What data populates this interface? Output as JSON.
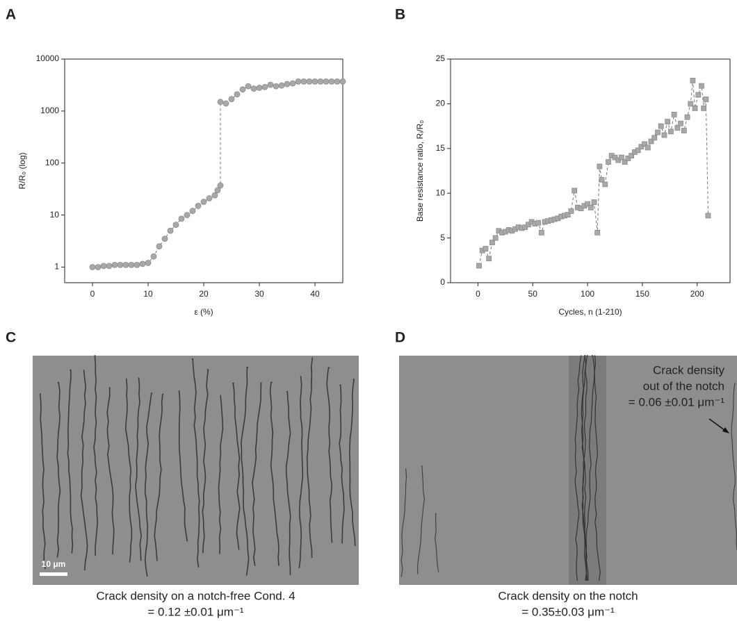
{
  "chart_data": [
    {
      "type": "line",
      "panel": "A",
      "x_label": "ε (%)",
      "y_label": "R/R₀ (log)",
      "log_y": true,
      "xlim": [
        -5,
        45
      ],
      "xticks": [
        0,
        10,
        20,
        30,
        40
      ],
      "ylim": [
        0.5,
        10000
      ],
      "yticks": [
        1,
        10,
        100,
        1000,
        10000
      ],
      "marker": "circle",
      "line_style": "dashed",
      "color": "#a8a8a8",
      "x": [
        0,
        1,
        2,
        3,
        4,
        5,
        6,
        7,
        8,
        9,
        10,
        11,
        12,
        13,
        14,
        15,
        16,
        17,
        18,
        19,
        20,
        21,
        22,
        22.5,
        23,
        23,
        24,
        25,
        26,
        27,
        28,
        29,
        30,
        31,
        32,
        33,
        34,
        35,
        36,
        37,
        38,
        39,
        40,
        41,
        42,
        43,
        44,
        45
      ],
      "values": [
        1.0,
        1.0,
        1.05,
        1.05,
        1.1,
        1.1,
        1.1,
        1.1,
        1.1,
        1.15,
        1.2,
        1.6,
        2.5,
        3.5,
        5,
        6.5,
        8.5,
        10,
        12,
        15,
        18,
        21,
        24,
        30,
        37,
        1500,
        1400,
        1700,
        2100,
        2600,
        3000,
        2700,
        2800,
        2900,
        3200,
        3000,
        3100,
        3300,
        3400,
        3700,
        3700,
        3700,
        3700,
        3700,
        3700,
        3700,
        3700,
        3700
      ]
    },
    {
      "type": "line",
      "panel": "B",
      "x_label": "Cycles, n (1-210)",
      "y_label": "Base resistance ratio, Rᵢ/R₀",
      "log_y": false,
      "xlim": [
        -25,
        230
      ],
      "xticks": [
        0,
        50,
        100,
        150,
        200
      ],
      "ylim": [
        0,
        25
      ],
      "yticks": [
        0,
        5,
        10,
        15,
        20,
        25
      ],
      "marker": "square",
      "line_style": "dashed",
      "color": "#a8a8a8",
      "x": [
        1,
        4,
        7,
        10,
        13,
        16,
        19,
        22,
        25,
        28,
        31,
        34,
        37,
        40,
        43,
        46,
        49,
        52,
        55,
        58,
        61,
        64,
        67,
        70,
        73,
        76,
        79,
        82,
        85,
        88,
        91,
        94,
        97,
        100,
        103,
        106,
        109,
        111,
        113,
        116,
        119,
        122,
        125,
        128,
        131,
        134,
        137,
        140,
        143,
        146,
        149,
        152,
        155,
        158,
        161,
        164,
        167,
        170,
        173,
        176,
        179,
        182,
        185,
        188,
        191,
        194,
        196,
        198,
        201,
        204,
        206,
        208,
        210
      ],
      "values": [
        1.9,
        3.6,
        3.8,
        2.7,
        4.5,
        5.0,
        5.8,
        5.6,
        5.7,
        5.9,
        5.8,
        6.0,
        6.2,
        6.1,
        6.2,
        6.5,
        6.8,
        6.6,
        6.7,
        5.6,
        6.8,
        6.9,
        7.0,
        7.1,
        7.2,
        7.4,
        7.5,
        7.6,
        8.0,
        10.3,
        8.4,
        8.3,
        8.6,
        8.8,
        8.4,
        9.0,
        5.6,
        13.0,
        11.5,
        11.0,
        13.5,
        14.2,
        14.0,
        13.7,
        14.0,
        13.5,
        13.9,
        14.2,
        14.6,
        14.8,
        15.2,
        15.5,
        15.1,
        15.8,
        16.2,
        16.8,
        17.5,
        16.5,
        18.0,
        16.9,
        18.8,
        17.3,
        17.8,
        17.0,
        18.5,
        20.0,
        22.6,
        19.5,
        21.0,
        22.0,
        19.5,
        20.5,
        7.5
      ]
    }
  ],
  "images": [
    {
      "panel": "C",
      "scale_bar": "10 μm",
      "caption": [
        "Crack density on a notch-free Cond. 4",
        "= 0.12 ±0.01 μm⁻¹"
      ]
    },
    {
      "panel": "D",
      "annotation": [
        "Crack density",
        "out of the notch",
        "= 0.06 ±0.01 μm⁻¹"
      ],
      "caption": [
        "Crack density on the notch",
        "= 0.35±0.03 μm⁻¹"
      ]
    }
  ]
}
